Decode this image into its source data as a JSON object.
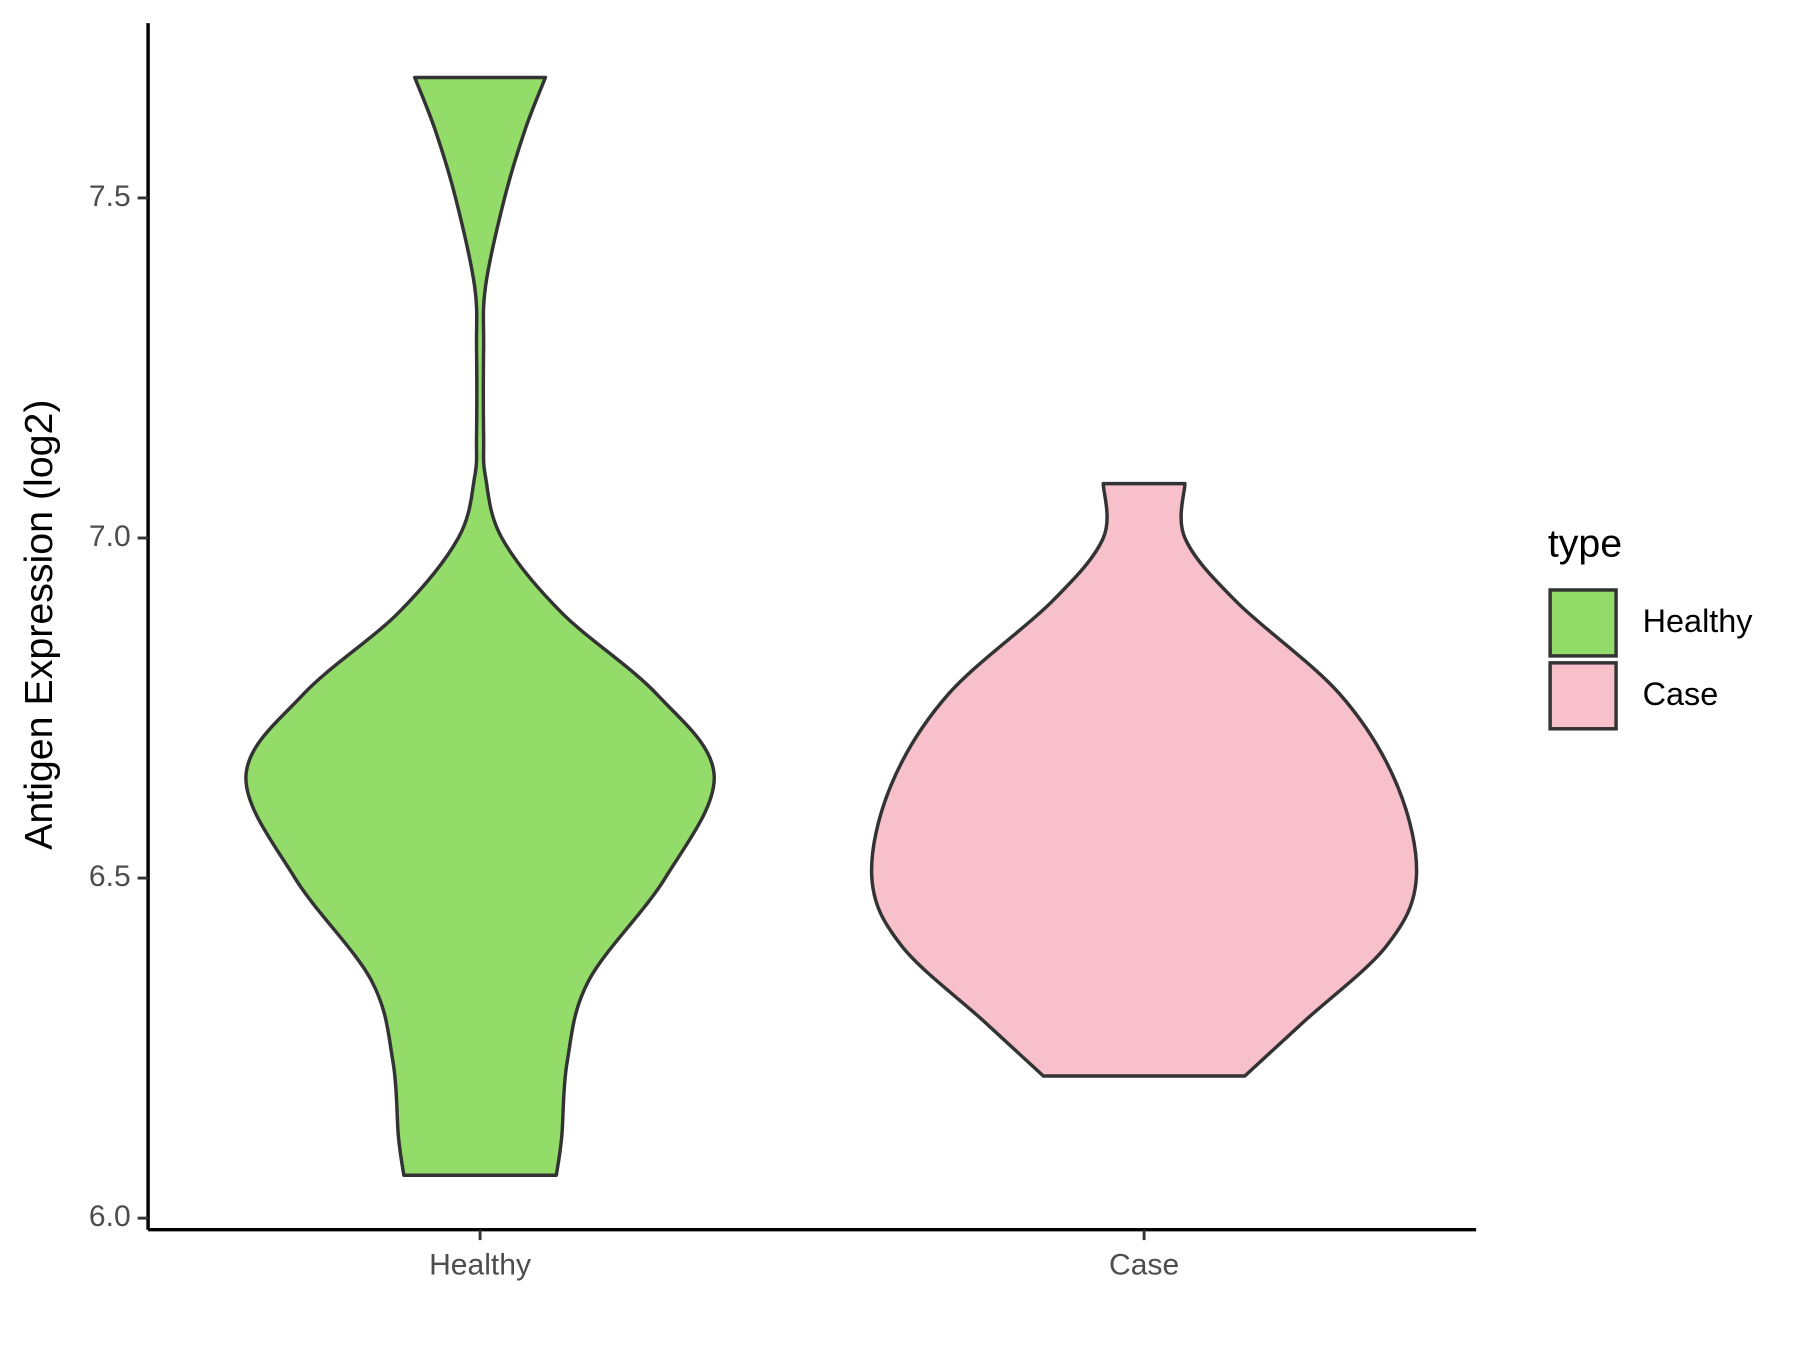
{
  "chart_data": {
    "type": "violin",
    "y_label": "Antigen Expression (log2)",
    "categories": [
      "Healthy",
      "Case"
    ],
    "ylim": [
      5.983,
      7.757
    ],
    "yticks": [
      {
        "value": 6,
        "label": "6.0"
      },
      6.5,
      {
        "value": 7,
        "label": "7.0"
      },
      7.5
    ],
    "legend_title": "type",
    "legend_position": "right",
    "series": [
      {
        "name": "Healthy",
        "color": "#93dc6a",
        "y": [
          7.677,
          7.6,
          7.5,
          7.37,
          7.28,
          7.15,
          7.09,
          7.0,
          6.89,
          6.77,
          6.65,
          6.5,
          6.35,
          6.23,
          6.12,
          6.063
        ],
        "density": [
          0.24,
          0.165,
          0.09,
          0.02,
          0.013,
          0.013,
          0.02,
          0.08,
          0.3,
          0.65,
          0.86,
          0.68,
          0.4,
          0.32,
          0.3,
          0.28
        ]
      },
      {
        "name": "Case",
        "color": "#f7c0cb",
        "y": [
          7.08,
          7.0,
          6.906,
          6.77,
          6.636,
          6.5,
          6.4,
          6.29,
          6.209
        ],
        "density": [
          0.15,
          0.15,
          0.34,
          0.72,
          0.93,
          1.0,
          0.89,
          0.59,
          0.37
        ]
      }
    ]
  }
}
